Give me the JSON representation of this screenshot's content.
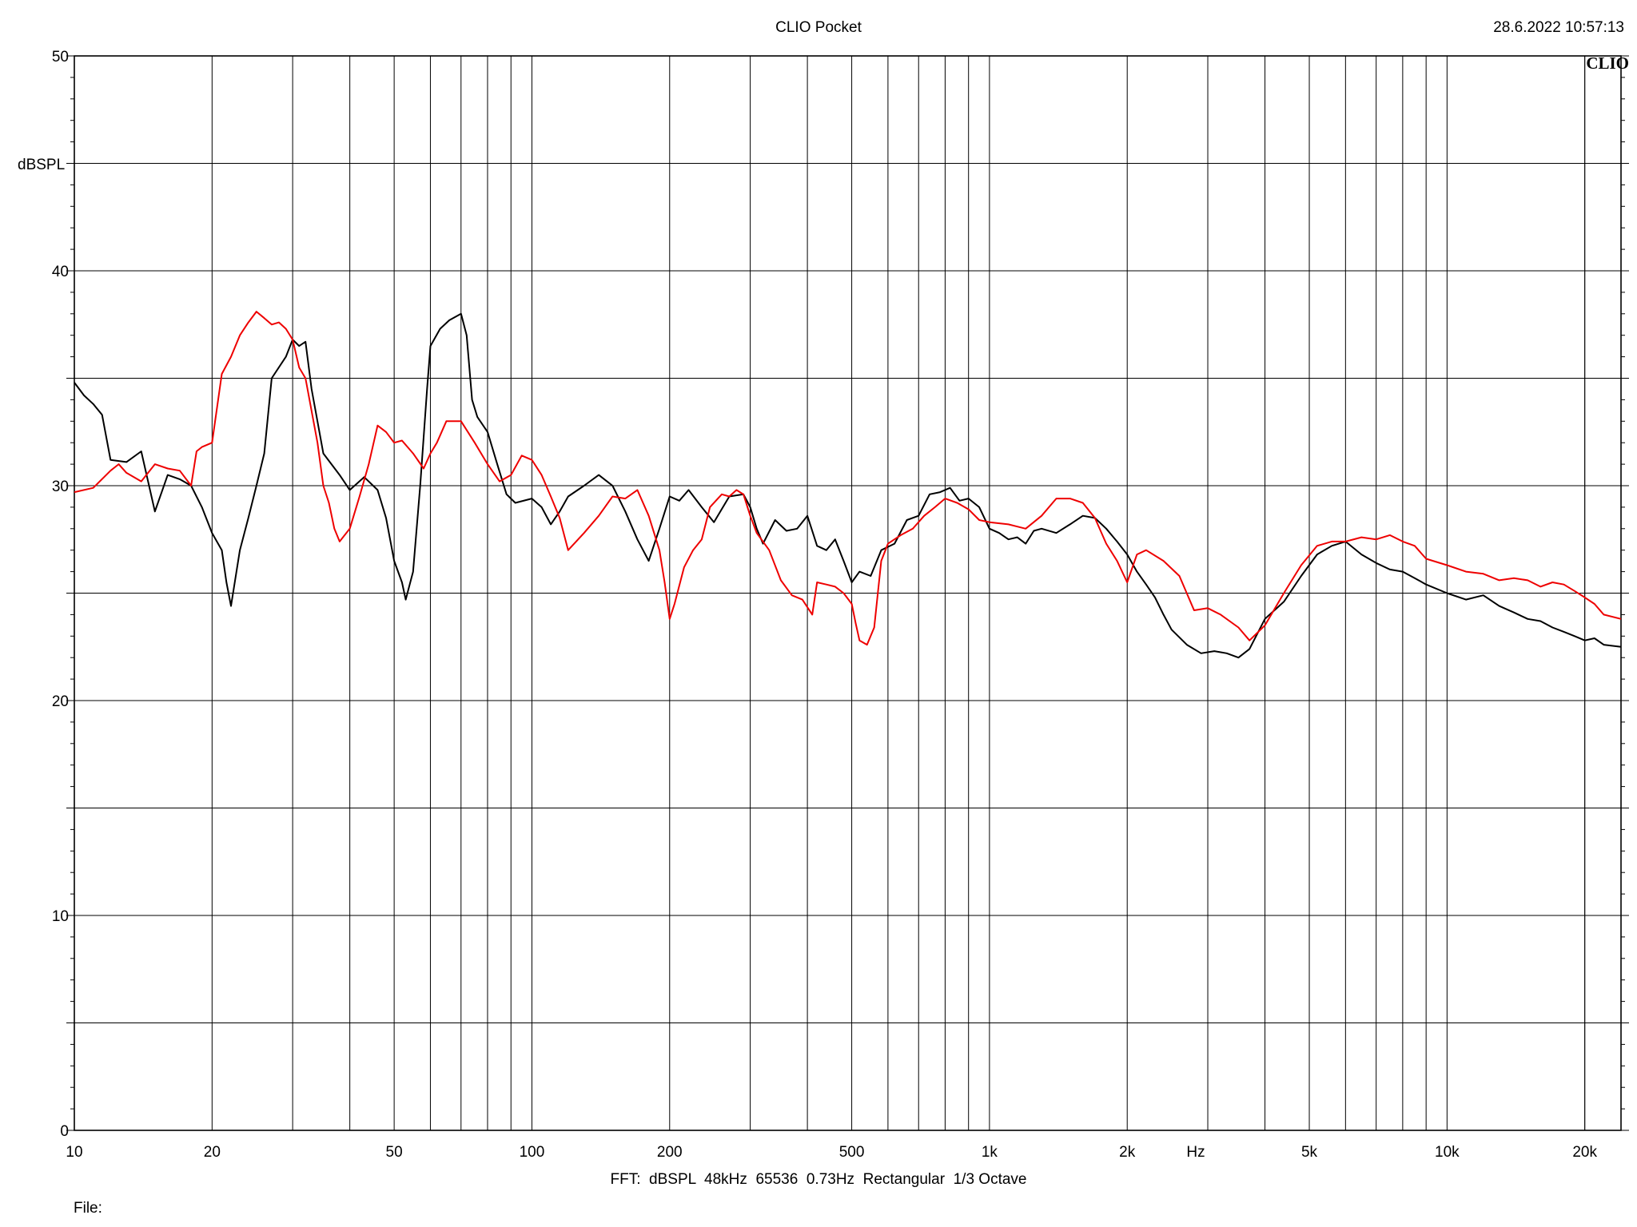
{
  "header": {
    "title": "CLIO Pocket",
    "timestamp": "28.6.2022 10:57:13",
    "logo": "CLIO"
  },
  "footer": {
    "fft_info": "FFT:  dBSPL  48kHz  65536  0.73Hz  Rectangular  1/3 Octave",
    "file_label": "File:"
  },
  "chart_data": {
    "type": "line",
    "xscale": "log",
    "xlim": [
      10,
      24000
    ],
    "ylim": [
      0,
      50
    ],
    "ylabel": "dBSPL",
    "xunit": "Hz",
    "grid": true,
    "xticks": [
      {
        "value": 10,
        "label": "10"
      },
      {
        "value": 20,
        "label": "20"
      },
      {
        "value": 50,
        "label": "50"
      },
      {
        "value": 100,
        "label": "100"
      },
      {
        "value": 200,
        "label": "200"
      },
      {
        "value": 500,
        "label": "500"
      },
      {
        "value": 1000,
        "label": "1k"
      },
      {
        "value": 2000,
        "label": "2k"
      },
      {
        "value": 5000,
        "label": "5k"
      },
      {
        "value": 10000,
        "label": "10k"
      },
      {
        "value": 20000,
        "label": "20k"
      }
    ],
    "yticks": [
      {
        "value": 0,
        "label": "0"
      },
      {
        "value": 10,
        "label": "10"
      },
      {
        "value": 20,
        "label": "20"
      },
      {
        "value": 30,
        "label": "30"
      },
      {
        "value": 40,
        "label": "40"
      },
      {
        "value": 50,
        "label": "50"
      }
    ],
    "series": [
      {
        "color": "#000000",
        "points": [
          [
            10,
            34.8
          ],
          [
            10.5,
            34.2
          ],
          [
            11,
            33.8
          ],
          [
            11.5,
            33.3
          ],
          [
            12,
            31.2
          ],
          [
            13,
            31.1
          ],
          [
            14,
            31.6
          ],
          [
            15,
            28.8
          ],
          [
            16,
            30.5
          ],
          [
            17,
            30.3
          ],
          [
            18,
            30.0
          ],
          [
            19,
            29.0
          ],
          [
            20,
            27.8
          ],
          [
            21,
            27.0
          ],
          [
            21.5,
            25.5
          ],
          [
            22,
            24.4
          ],
          [
            23,
            27.0
          ],
          [
            24,
            28.5
          ],
          [
            25,
            30.0
          ],
          [
            26,
            31.5
          ],
          [
            27,
            35.0
          ],
          [
            29,
            36.0
          ],
          [
            30,
            36.8
          ],
          [
            31,
            36.5
          ],
          [
            32,
            36.7
          ],
          [
            33,
            34.5
          ],
          [
            35,
            31.5
          ],
          [
            38,
            30.5
          ],
          [
            40,
            29.8
          ],
          [
            43,
            30.4
          ],
          [
            46,
            29.8
          ],
          [
            48,
            28.5
          ],
          [
            50,
            26.5
          ],
          [
            52,
            25.5
          ],
          [
            53,
            24.7
          ],
          [
            55,
            26.0
          ],
          [
            57,
            30.0
          ],
          [
            59,
            34.5
          ],
          [
            60,
            36.5
          ],
          [
            63,
            37.3
          ],
          [
            66,
            37.7
          ],
          [
            70,
            38.0
          ],
          [
            72,
            37.0
          ],
          [
            73,
            35.5
          ],
          [
            74,
            34.0
          ],
          [
            76,
            33.2
          ],
          [
            80,
            32.5
          ],
          [
            84,
            31.0
          ],
          [
            88,
            29.6
          ],
          [
            92,
            29.2
          ],
          [
            100,
            29.4
          ],
          [
            105,
            29.0
          ],
          [
            110,
            28.2
          ],
          [
            115,
            28.8
          ],
          [
            120,
            29.5
          ],
          [
            130,
            30.0
          ],
          [
            140,
            30.5
          ],
          [
            150,
            30.0
          ],
          [
            160,
            28.8
          ],
          [
            170,
            27.5
          ],
          [
            180,
            26.5
          ],
          [
            190,
            28.0
          ],
          [
            200,
            29.5
          ],
          [
            210,
            29.3
          ],
          [
            220,
            29.8
          ],
          [
            235,
            29.0
          ],
          [
            250,
            28.3
          ],
          [
            270,
            29.5
          ],
          [
            290,
            29.6
          ],
          [
            300,
            29.0
          ],
          [
            310,
            28.0
          ],
          [
            320,
            27.3
          ],
          [
            340,
            28.4
          ],
          [
            360,
            27.9
          ],
          [
            380,
            28.0
          ],
          [
            400,
            28.6
          ],
          [
            420,
            27.2
          ],
          [
            440,
            27.0
          ],
          [
            460,
            27.5
          ],
          [
            480,
            26.5
          ],
          [
            500,
            25.5
          ],
          [
            520,
            26.0
          ],
          [
            550,
            25.8
          ],
          [
            580,
            27.0
          ],
          [
            620,
            27.3
          ],
          [
            660,
            28.4
          ],
          [
            700,
            28.6
          ],
          [
            740,
            29.6
          ],
          [
            780,
            29.7
          ],
          [
            820,
            29.9
          ],
          [
            860,
            29.3
          ],
          [
            900,
            29.4
          ],
          [
            950,
            29.0
          ],
          [
            1000,
            28.0
          ],
          [
            1050,
            27.8
          ],
          [
            1100,
            27.5
          ],
          [
            1150,
            27.6
          ],
          [
            1200,
            27.3
          ],
          [
            1250,
            27.9
          ],
          [
            1300,
            28.0
          ],
          [
            1400,
            27.8
          ],
          [
            1500,
            28.2
          ],
          [
            1600,
            28.6
          ],
          [
            1700,
            28.5
          ],
          [
            1800,
            28.0
          ],
          [
            1900,
            27.4
          ],
          [
            2000,
            26.8
          ],
          [
            2100,
            26.0
          ],
          [
            2200,
            25.4
          ],
          [
            2300,
            24.8
          ],
          [
            2400,
            24.0
          ],
          [
            2500,
            23.3
          ],
          [
            2700,
            22.6
          ],
          [
            2900,
            22.2
          ],
          [
            3100,
            22.3
          ],
          [
            3300,
            22.2
          ],
          [
            3500,
            22.0
          ],
          [
            3700,
            22.4
          ],
          [
            4000,
            23.8
          ],
          [
            4400,
            24.6
          ],
          [
            4800,
            25.8
          ],
          [
            5200,
            26.8
          ],
          [
            5600,
            27.2
          ],
          [
            6000,
            27.4
          ],
          [
            6500,
            26.8
          ],
          [
            7000,
            26.4
          ],
          [
            7500,
            26.1
          ],
          [
            8000,
            26.0
          ],
          [
            8500,
            25.7
          ],
          [
            9000,
            25.4
          ],
          [
            10000,
            25.0
          ],
          [
            11000,
            24.7
          ],
          [
            12000,
            24.9
          ],
          [
            13000,
            24.4
          ],
          [
            14000,
            24.1
          ],
          [
            15000,
            23.8
          ],
          [
            16000,
            23.7
          ],
          [
            17000,
            23.4
          ],
          [
            18000,
            23.2
          ],
          [
            19000,
            23.0
          ],
          [
            20000,
            22.8
          ],
          [
            21000,
            22.9
          ],
          [
            22000,
            22.6
          ],
          [
            24000,
            22.5
          ]
        ]
      },
      {
        "color": "#ee0000",
        "points": [
          [
            10,
            29.7
          ],
          [
            11,
            29.9
          ],
          [
            12,
            30.7
          ],
          [
            12.5,
            31.0
          ],
          [
            13,
            30.6
          ],
          [
            14,
            30.2
          ],
          [
            15,
            31.0
          ],
          [
            16,
            30.8
          ],
          [
            17,
            30.7
          ],
          [
            18,
            30.0
          ],
          [
            18.5,
            31.6
          ],
          [
            19,
            31.8
          ],
          [
            20,
            32.0
          ],
          [
            21,
            35.2
          ],
          [
            22,
            36.0
          ],
          [
            23,
            37.0
          ],
          [
            24,
            37.6
          ],
          [
            25,
            38.1
          ],
          [
            26,
            37.8
          ],
          [
            27,
            37.5
          ],
          [
            28,
            37.6
          ],
          [
            29,
            37.3
          ],
          [
            30,
            36.8
          ],
          [
            31,
            35.5
          ],
          [
            32,
            35.0
          ],
          [
            34,
            32.0
          ],
          [
            35,
            30.0
          ],
          [
            36,
            29.2
          ],
          [
            37,
            28.0
          ],
          [
            38,
            27.4
          ],
          [
            40,
            28.0
          ],
          [
            42,
            29.5
          ],
          [
            44,
            31.0
          ],
          [
            46,
            32.8
          ],
          [
            48,
            32.5
          ],
          [
            50,
            32.0
          ],
          [
            52,
            32.1
          ],
          [
            55,
            31.5
          ],
          [
            58,
            30.8
          ],
          [
            60,
            31.5
          ],
          [
            62,
            32.0
          ],
          [
            65,
            33.0
          ],
          [
            70,
            33.0
          ],
          [
            75,
            32.0
          ],
          [
            80,
            31.0
          ],
          [
            85,
            30.2
          ],
          [
            90,
            30.5
          ],
          [
            95,
            31.4
          ],
          [
            100,
            31.2
          ],
          [
            105,
            30.5
          ],
          [
            110,
            29.5
          ],
          [
            115,
            28.5
          ],
          [
            120,
            27.0
          ],
          [
            130,
            27.8
          ],
          [
            140,
            28.6
          ],
          [
            150,
            29.5
          ],
          [
            160,
            29.4
          ],
          [
            170,
            29.8
          ],
          [
            180,
            28.6
          ],
          [
            190,
            27.0
          ],
          [
            195,
            25.5
          ],
          [
            200,
            23.8
          ],
          [
            205,
            24.5
          ],
          [
            215,
            26.2
          ],
          [
            225,
            27.0
          ],
          [
            235,
            27.5
          ],
          [
            245,
            29.0
          ],
          [
            260,
            29.6
          ],
          [
            270,
            29.5
          ],
          [
            280,
            29.8
          ],
          [
            290,
            29.6
          ],
          [
            300,
            28.6
          ],
          [
            310,
            27.8
          ],
          [
            330,
            27.0
          ],
          [
            350,
            25.6
          ],
          [
            370,
            24.9
          ],
          [
            390,
            24.7
          ],
          [
            410,
            24.0
          ],
          [
            420,
            25.5
          ],
          [
            440,
            25.4
          ],
          [
            460,
            25.3
          ],
          [
            480,
            25.0
          ],
          [
            500,
            24.5
          ],
          [
            510,
            23.6
          ],
          [
            520,
            22.8
          ],
          [
            540,
            22.6
          ],
          [
            560,
            23.4
          ],
          [
            580,
            26.5
          ],
          [
            600,
            27.3
          ],
          [
            640,
            27.7
          ],
          [
            680,
            28.0
          ],
          [
            720,
            28.6
          ],
          [
            760,
            29.0
          ],
          [
            800,
            29.4
          ],
          [
            850,
            29.2
          ],
          [
            900,
            28.9
          ],
          [
            950,
            28.4
          ],
          [
            1000,
            28.3
          ],
          [
            1100,
            28.2
          ],
          [
            1200,
            28.0
          ],
          [
            1300,
            28.6
          ],
          [
            1400,
            29.4
          ],
          [
            1500,
            29.4
          ],
          [
            1600,
            29.2
          ],
          [
            1700,
            28.5
          ],
          [
            1800,
            27.3
          ],
          [
            1900,
            26.5
          ],
          [
            2000,
            25.5
          ],
          [
            2100,
            26.8
          ],
          [
            2200,
            27.0
          ],
          [
            2400,
            26.5
          ],
          [
            2600,
            25.8
          ],
          [
            2800,
            24.2
          ],
          [
            3000,
            24.3
          ],
          [
            3200,
            24.0
          ],
          [
            3500,
            23.4
          ],
          [
            3700,
            22.8
          ],
          [
            4000,
            23.5
          ],
          [
            4400,
            25.0
          ],
          [
            4800,
            26.3
          ],
          [
            5200,
            27.2
          ],
          [
            5600,
            27.4
          ],
          [
            6000,
            27.4
          ],
          [
            6500,
            27.6
          ],
          [
            7000,
            27.5
          ],
          [
            7500,
            27.7
          ],
          [
            8000,
            27.4
          ],
          [
            8500,
            27.2
          ],
          [
            9000,
            26.6
          ],
          [
            10000,
            26.3
          ],
          [
            11000,
            26.0
          ],
          [
            12000,
            25.9
          ],
          [
            13000,
            25.6
          ],
          [
            14000,
            25.7
          ],
          [
            15000,
            25.6
          ],
          [
            16000,
            25.3
          ],
          [
            17000,
            25.5
          ],
          [
            18000,
            25.4
          ],
          [
            19000,
            25.1
          ],
          [
            20000,
            24.8
          ],
          [
            21000,
            24.5
          ],
          [
            22000,
            24.0
          ],
          [
            24000,
            23.8
          ]
        ]
      }
    ]
  }
}
